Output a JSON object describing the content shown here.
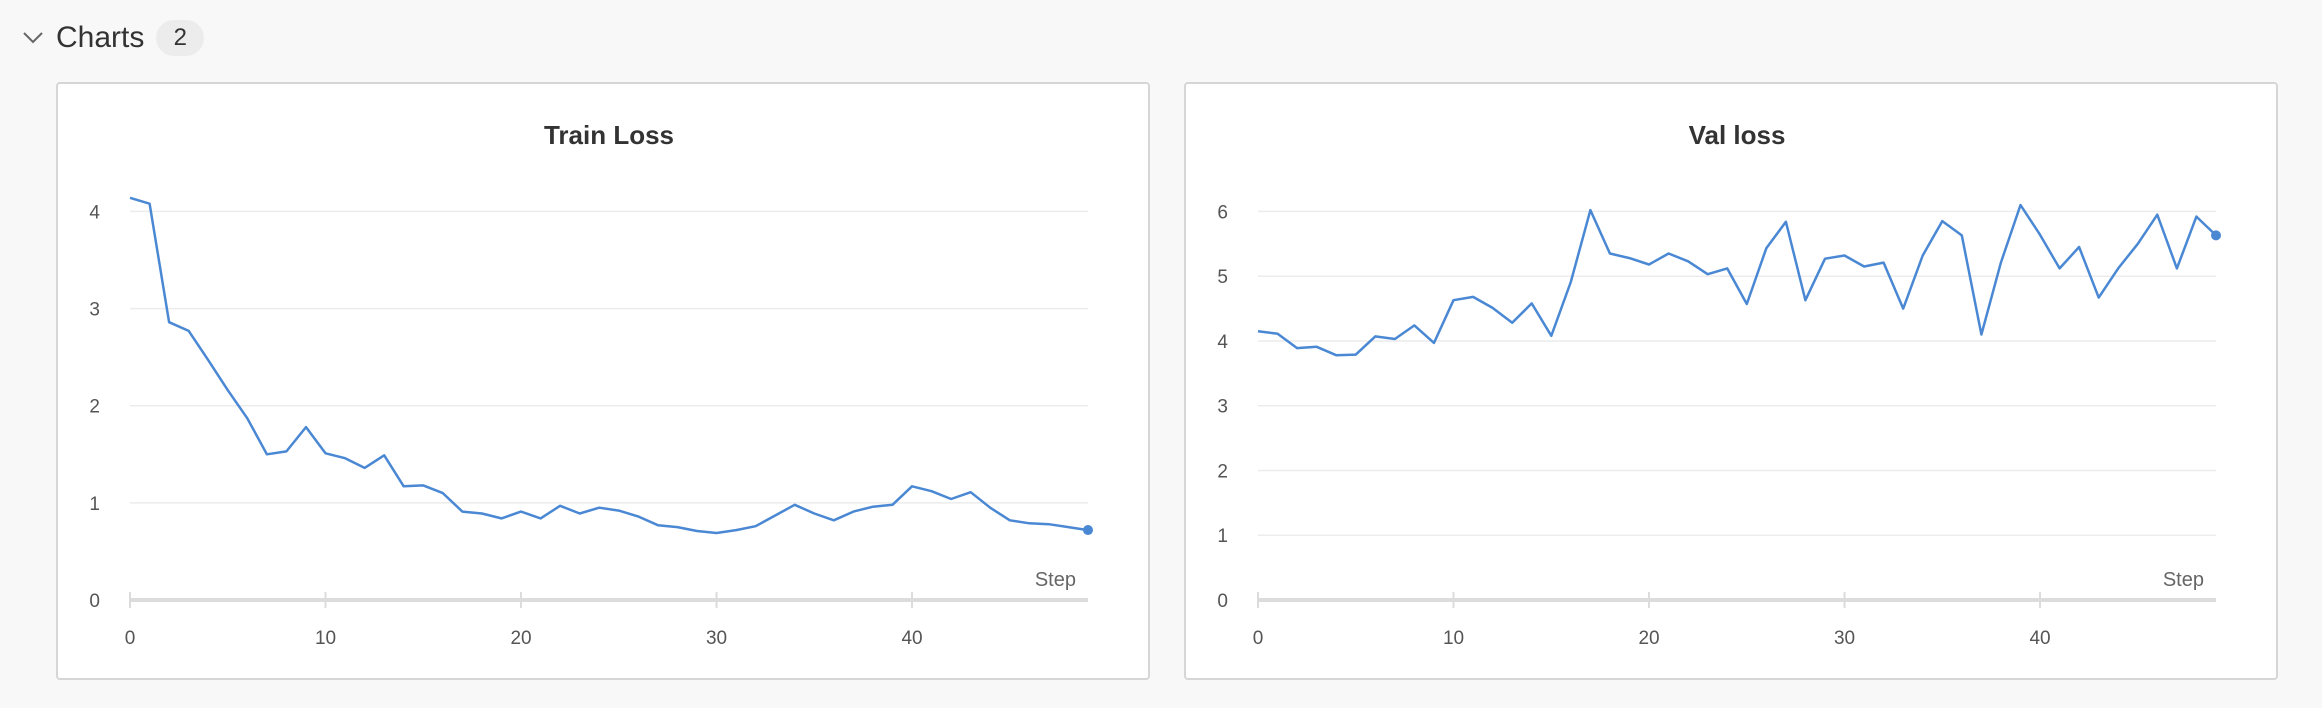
{
  "section": {
    "title": "Charts",
    "count": "2",
    "toggle_icon": "chevron-down-icon"
  },
  "colors": {
    "line": "#4a88d4",
    "grid": "#ececec",
    "axis": "#dcdcdc"
  },
  "chart_data": [
    {
      "type": "line",
      "title": "Train Loss",
      "xlabel": "Step",
      "ylabel": "",
      "xlim": [
        0,
        49
      ],
      "ylim": [
        0,
        4.2
      ],
      "xticks": [
        0,
        10,
        20,
        30,
        40
      ],
      "yticks": [
        0,
        1,
        2,
        3,
        4
      ],
      "grid": true,
      "series": [
        {
          "x": [
            0,
            1,
            2,
            3,
            4,
            5,
            6,
            7,
            8,
            9,
            10,
            11,
            12,
            13,
            14,
            15,
            16,
            17,
            18,
            19,
            20,
            21,
            22,
            23,
            24,
            25,
            26,
            27,
            28,
            29,
            30,
            31,
            32,
            33,
            34,
            35,
            36,
            37,
            38,
            39,
            40,
            41,
            42,
            43,
            44,
            45,
            46,
            47,
            48,
            49
          ],
          "values": [
            4.14,
            4.08,
            2.86,
            2.77,
            2.47,
            2.16,
            1.87,
            1.5,
            1.53,
            1.78,
            1.51,
            1.46,
            1.36,
            1.49,
            1.17,
            1.18,
            1.1,
            0.91,
            0.89,
            0.84,
            0.91,
            0.84,
            0.97,
            0.89,
            0.95,
            0.92,
            0.86,
            0.77,
            0.75,
            0.71,
            0.69,
            0.72,
            0.76,
            0.87,
            0.98,
            0.89,
            0.82,
            0.91,
            0.96,
            0.98,
            1.17,
            1.12,
            1.04,
            1.11,
            0.95,
            0.82,
            0.79,
            0.78,
            0.75,
            0.72
          ]
        }
      ]
    },
    {
      "type": "line",
      "title": "Val loss",
      "xlabel": "Step",
      "ylabel": "",
      "xlim": [
        0,
        49
      ],
      "ylim": [
        0,
        6.3
      ],
      "xticks": [
        0,
        10,
        20,
        30,
        40
      ],
      "yticks": [
        0,
        1,
        2,
        3,
        4,
        5,
        6
      ],
      "grid": true,
      "series": [
        {
          "x": [
            0,
            1,
            2,
            3,
            4,
            5,
            6,
            7,
            8,
            9,
            10,
            11,
            12,
            13,
            14,
            15,
            16,
            17,
            18,
            19,
            20,
            21,
            22,
            23,
            24,
            25,
            26,
            27,
            28,
            29,
            30,
            31,
            32,
            33,
            34,
            35,
            36,
            37,
            38,
            39,
            40,
            41,
            42,
            43,
            44,
            45,
            46,
            47,
            48,
            49
          ],
          "values": [
            4.15,
            4.11,
            3.89,
            3.91,
            3.78,
            3.79,
            4.07,
            4.03,
            4.24,
            3.97,
            4.63,
            4.68,
            4.51,
            4.28,
            4.58,
            4.08,
            4.91,
            6.02,
            5.35,
            5.28,
            5.18,
            5.35,
            5.23,
            5.03,
            5.12,
            4.57,
            5.43,
            5.84,
            4.63,
            5.27,
            5.32,
            5.15,
            5.21,
            4.5,
            5.32,
            5.85,
            5.63,
            4.1,
            5.21,
            6.1,
            5.64,
            5.12,
            5.45,
            4.67,
            5.12,
            5.5,
            5.95,
            5.12,
            5.92,
            5.63
          ]
        }
      ]
    }
  ]
}
